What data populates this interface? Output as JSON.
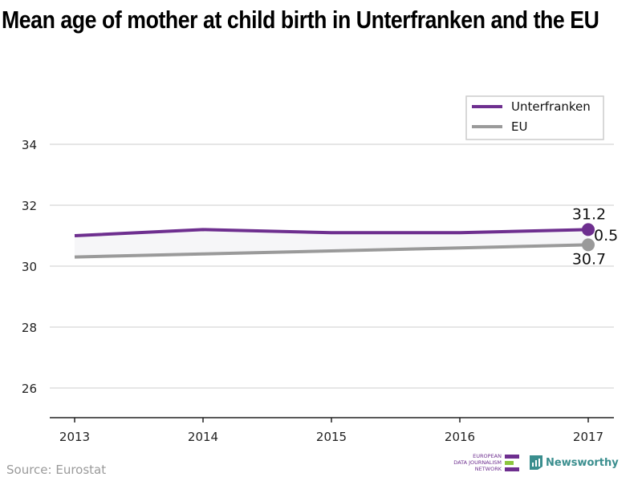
{
  "title": "Mean age of mother at child birth in Unterfranken and the EU",
  "source": "Source: Eurostat",
  "logos": {
    "edjn": [
      "EUROPEAN",
      "DATA JOURNALISM",
      "NETWORK"
    ],
    "newsworthy": "Newsworthy"
  },
  "colors": {
    "unterfranken": "#6e2f8f",
    "eu": "#9a9a9a",
    "grid": "#dddddd",
    "axis": "#222222",
    "edjn_green": "#8dc63f",
    "newsworthy": "#3a8e8e"
  },
  "chart_data": {
    "type": "line",
    "x": [
      2013,
      2014,
      2015,
      2016,
      2017
    ],
    "ylim": [
      25,
      35
    ],
    "yticks": [
      26,
      28,
      30,
      32,
      34
    ],
    "grid": true,
    "legend": "top-right",
    "series": [
      {
        "name": "Unterfranken",
        "values": [
          31.0,
          31.2,
          31.1,
          31.1,
          31.2
        ],
        "end_label": "31.2"
      },
      {
        "name": "EU",
        "values": [
          30.3,
          30.4,
          30.5,
          30.6,
          30.7
        ],
        "end_label": "30.7"
      }
    ],
    "difference_label": "0.5"
  }
}
